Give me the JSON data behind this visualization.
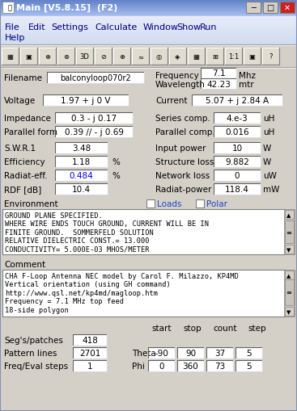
{
  "title": "Main [V5.8.15]  (F2)",
  "filename_label": "Filename",
  "filename_value": "balconyloop070r2",
  "freq_label": "Frequency",
  "freq_value": "7.1",
  "freq_unit": "Mhz",
  "wave_label": "Wavelength",
  "wave_value": "42.23",
  "wave_unit": "mtr",
  "voltage_label": "Voltage",
  "voltage_value": "1.97 + j 0 V",
  "current_label": "Current",
  "current_value": "5.07 + j 2.84 A",
  "impedance_label": "Impedance",
  "impedance_value": "0.3 - j 0.17",
  "parallel_label": "Parallel form",
  "parallel_value": "0.39 // - j 0.69",
  "series_label": "Series comp.",
  "series_value": "4.e-3",
  "series_unit": "uH",
  "parallel_comp_label": "Parallel comp.",
  "parallel_comp_value": "0.016",
  "parallel_comp_unit": "uH",
  "swr_label": "S.W.R.1",
  "swr_value": "3.48",
  "efficiency_label": "Efficiency",
  "efficiency_value": "1.18",
  "efficiency_unit": "%",
  "radiat_label": "Radiat-eff.",
  "radiat_value": "0.484",
  "radiat_unit": "%",
  "rdf_label": "RDF [dB]",
  "rdf_value": "10.4",
  "input_power_label": "Input power",
  "input_power_value": "10",
  "input_power_unit": "W",
  "struct_loss_label": "Structure loss",
  "struct_loss_value": "9.882",
  "struct_loss_unit": "W",
  "network_loss_label": "Network loss",
  "network_loss_value": "0",
  "network_loss_unit": "uW",
  "radiat_power_label": "Radiat-power",
  "radiat_power_value": "118.4",
  "radiat_power_unit": "mW",
  "environment_label": "Environment",
  "loads_label": "Loads",
  "polar_label": "Polar",
  "env_text": "GROUND PLANE SPECIFIED.\nWHERE WIRE ENDS TOUCH GROUND, CURRENT WILL BE IN\nFINITE GROUND.  SOMMERFELD SOLUTION\nRELATIVE DIELECTRIC CONST.= 13.000\nCONDUCTIVITY= 5.000E-03 MHOS/METER",
  "comment_label": "Comment",
  "comment_text": "CHA F-Loop Antenna NEC model by Carol F. Milazzo, KP4MD\nVertical orientation (using GH command)\nhttp://www.qsl.net/kp4md/magloop.htm\nFrequency = 7.1 MHz top feed\n18-side polygon",
  "segs_label": "Seg's/patches",
  "segs_value": "418",
  "pattern_label": "Pattern lines",
  "pattern_value": "2701",
  "freq_eval_label": "Freq/Eval steps",
  "freq_eval_value": "1",
  "start_label": "start",
  "stop_label": "stop",
  "count_label": "count",
  "step_label": "step",
  "theta_label": "Theta",
  "theta_start": "-90",
  "theta_stop": "90",
  "theta_count": "37",
  "theta_step": "5",
  "phi_label": "Phi",
  "phi_start": "0",
  "phi_stop": "360",
  "phi_count": "73",
  "phi_step": "5",
  "bg_color": "#d4d0c8",
  "titlebar_bg": "#6080c8",
  "titlebar_gradient_left": "#6080d0",
  "input_bg": "#ffffff",
  "radiat_value_color": "#0000ee",
  "loads_polar_color": "#2244cc",
  "menu_text_color": "#000080"
}
